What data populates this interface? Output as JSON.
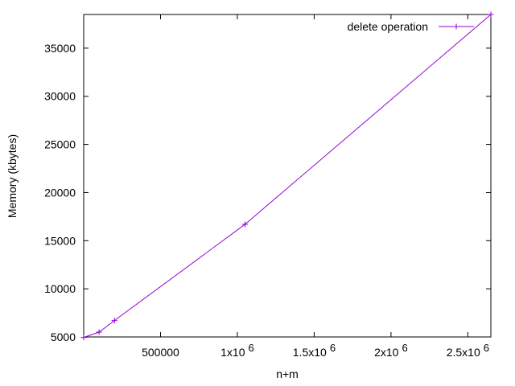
{
  "chart_data": {
    "type": "line",
    "title": "",
    "xlabel": "n+m",
    "ylabel": "Memory (kbytes)",
    "xlim": [
      0,
      2650000
    ],
    "ylim": [
      5000,
      38500
    ],
    "grid": false,
    "legend_position": "top-right",
    "x_ticks": [
      {
        "value": 500000,
        "base": "500000",
        "exp": ""
      },
      {
        "value": 1000000,
        "base": "1x10",
        "exp": "6"
      },
      {
        "value": 1500000,
        "base": "1.5x10",
        "exp": "6"
      },
      {
        "value": 2000000,
        "base": "2x10",
        "exp": "6"
      },
      {
        "value": 2500000,
        "base": "2.5x10",
        "exp": "6"
      }
    ],
    "y_ticks": [
      {
        "value": 5000,
        "label": "5000"
      },
      {
        "value": 10000,
        "label": "10000"
      },
      {
        "value": 15000,
        "label": "15000"
      },
      {
        "value": 20000,
        "label": "20000"
      },
      {
        "value": 25000,
        "label": "25000"
      },
      {
        "value": 30000,
        "label": "30000"
      },
      {
        "value": 35000,
        "label": "35000"
      }
    ],
    "series": [
      {
        "name": "delete operation",
        "color": "#9400d3",
        "marker": "plus",
        "x": [
          0,
          100000,
          200000,
          1050000,
          2650000
        ],
        "y": [
          4950,
          5500,
          6700,
          16700,
          38500
        ]
      }
    ]
  }
}
